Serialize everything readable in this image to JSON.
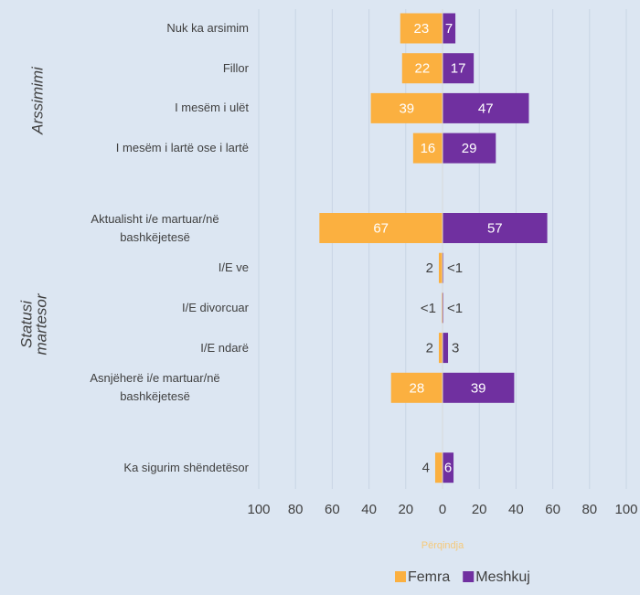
{
  "chart_data": {
    "type": "diverging_bar",
    "categories": [
      "Nuk ka arsimim",
      "Fillor",
      "I mesëm i ulët",
      "I mesëm i lartë ose i lartë",
      null,
      "Aktualisht i/e martuar/në bashkëjetesë",
      "I/E ve",
      "I/E divorcuar",
      "I/E ndarë",
      "Asnjëherë i/e martuar/në bashkëjetesë",
      null,
      "Ka sigurim shëndetësor"
    ],
    "series": [
      {
        "name": "Femra",
        "color": "#fbb040",
        "values": [
          23,
          22,
          39,
          16,
          null,
          67,
          2,
          0.5,
          2,
          28,
          null,
          4
        ],
        "value_labels": [
          "23",
          "22",
          "39",
          "16",
          null,
          "67",
          "2",
          "<1",
          "2",
          "28",
          null,
          "4"
        ]
      },
      {
        "name": "Meshkuj",
        "color": "#7030a0",
        "values": [
          7,
          17,
          47,
          29,
          null,
          57,
          0.5,
          0.5,
          3,
          39,
          null,
          6
        ],
        "value_labels": [
          "7",
          "17",
          "47",
          "29",
          null,
          "57",
          "<1",
          "<1",
          "3",
          "39",
          null,
          "6"
        ]
      }
    ],
    "group_labels": [
      {
        "lines": [
          "Arssimimi"
        ]
      },
      {
        "lines": [
          "Statusi",
          "martesor"
        ]
      }
    ],
    "xlabel": "Përqindja",
    "xlim": [
      -100,
      100
    ],
    "xticks": [
      {
        "value": -100,
        "label": "100"
      },
      {
        "value": -80,
        "label": "80"
      },
      {
        "value": -60,
        "label": "60"
      },
      {
        "value": -40,
        "label": "40"
      },
      {
        "value": -20,
        "label": "20"
      },
      0,
      20,
      40,
      60,
      80,
      100
    ],
    "grid": true,
    "legend": "bottom"
  }
}
